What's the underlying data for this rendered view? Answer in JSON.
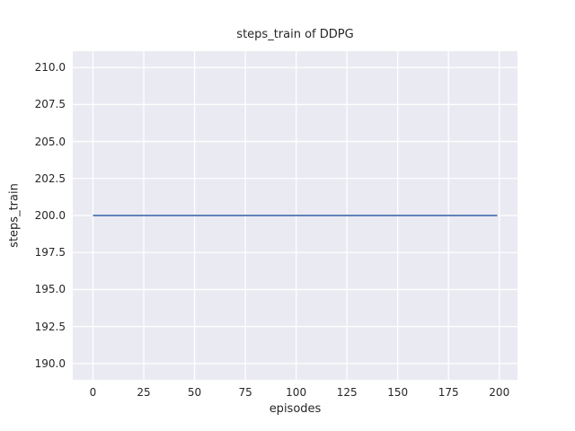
{
  "chart_data": {
    "type": "line",
    "title": "steps_train of DDPG",
    "xlabel": "episodes",
    "ylabel": "steps_train",
    "xlim": [
      -9.95,
      208.95
    ],
    "ylim": [
      188.9,
      211.1
    ],
    "xticks": [
      0,
      25,
      50,
      75,
      100,
      125,
      150,
      175,
      200
    ],
    "xtick_labels": [
      "0",
      "25",
      "50",
      "75",
      "100",
      "125",
      "150",
      "175",
      "200"
    ],
    "yticks": [
      190.0,
      192.5,
      195.0,
      197.5,
      200.0,
      202.5,
      205.0,
      207.5,
      210.0
    ],
    "ytick_labels": [
      "190.0",
      "192.5",
      "195.0",
      "197.5",
      "200.0",
      "202.5",
      "205.0",
      "207.5",
      "210.0"
    ],
    "grid": true,
    "legend_position": "none",
    "series": [
      {
        "name": "steps_train",
        "color": "#4c72b0",
        "x": [
          0,
          199
        ],
        "y": [
          200,
          200
        ]
      }
    ],
    "colors": {
      "figure_background": "#ffffff",
      "axes_background": "#eaeaf2",
      "grid_line": "#ffffff",
      "text": "#262626"
    }
  }
}
